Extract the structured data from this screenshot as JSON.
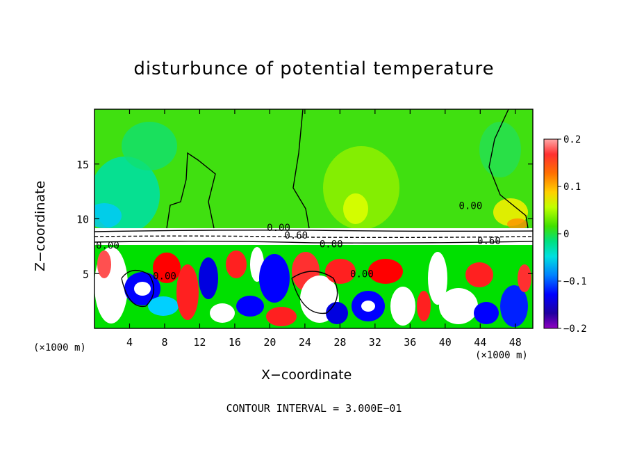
{
  "title": "disturbunce of potential temperature",
  "xlabel": "X−coordinate",
  "ylabel": "Z−coordinate",
  "x_unit_left": "(×1000 m)",
  "x_unit_right": "(×1000 m)",
  "footer": "CONTOUR INTERVAL = 3.000E−01",
  "chart_data": {
    "type": "heatmap",
    "title": "disturbunce of potential temperature",
    "xlabel": "X−coordinate",
    "ylabel": "Z−coordinate",
    "x_unit": "(×1000 m)",
    "xlim": [
      0,
      50
    ],
    "ylim": [
      0,
      20
    ],
    "x_ticks": [
      4,
      8,
      12,
      16,
      20,
      24,
      28,
      32,
      36,
      40,
      44,
      48
    ],
    "y_ticks": [
      5,
      10,
      15
    ],
    "colorbar": {
      "range": [
        -0.2,
        0.2
      ],
      "tick_values": [
        0.2,
        0.1,
        0,
        -0.1,
        -0.2
      ],
      "tick_labels": [
        "0.2",
        "0.1",
        "0",
        "−0.1",
        "−0.2"
      ],
      "colors": [
        "#ffa0a0",
        "#ff4040",
        "#ff0000",
        "#ff6000",
        "#ff9000",
        "#ffc000",
        "#ffff00",
        "#c0ff00",
        "#80ff00",
        "#40f000",
        "#00e000",
        "#00e080",
        "#00e0e0",
        "#00a0ff",
        "#0060ff",
        "#0000ff",
        "#0000c0",
        "#4000a0",
        "#8000c0"
      ]
    },
    "contour_interval": "3.000E−01",
    "contour_labels": [
      {
        "text": "0.00",
        "x": 42.9,
        "y": 11.2
      },
      {
        "text": "0.00",
        "x": 21.0,
        "y": 9.2
      },
      {
        "text": "0.60",
        "x": 23.0,
        "y": 8.5
      },
      {
        "text": "0.00",
        "x": 27.0,
        "y": 7.7
      },
      {
        "text": "0.60",
        "x": 45.0,
        "y": 8.0
      },
      {
        "text": "0.00",
        "x": 1.5,
        "y": 7.6
      },
      {
        "text": "0.00",
        "x": 8.0,
        "y": 4.8
      },
      {
        "text": "0.00",
        "x": 30.5,
        "y": 5.0
      }
    ]
  }
}
